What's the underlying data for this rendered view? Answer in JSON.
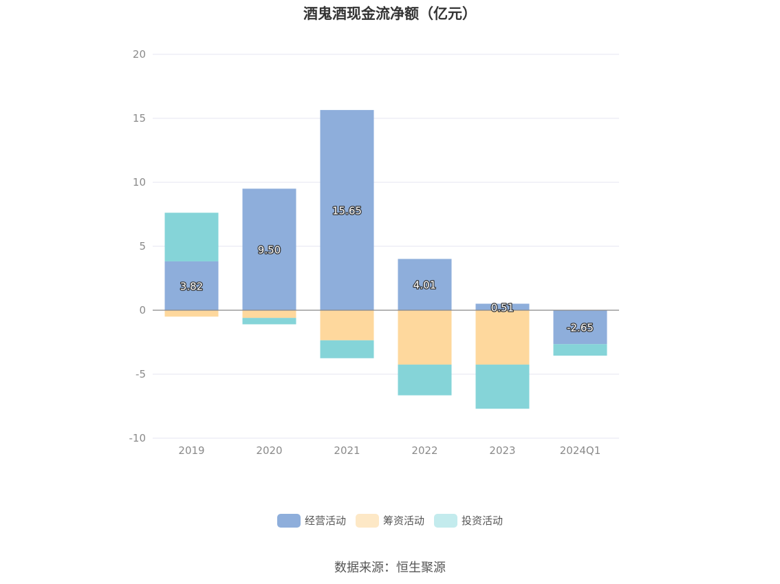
{
  "title": "酒鬼酒现金流净额（亿元）",
  "source": "数据来源：恒生聚源",
  "colors": {
    "operating": "#8eaedb",
    "financing": "#fed89d",
    "investing": "#85d4d8",
    "legend_operating": "#8eaedb",
    "legend_financing": "#fde8c6",
    "legend_investing": "#c3ebed",
    "grid": "#e4e6f0",
    "zero_line": "#888888"
  },
  "chart_data": {
    "type": "bar",
    "stacked": true,
    "title": "酒鬼酒现金流净额（亿元）",
    "categories": [
      "2019",
      "2020",
      "2021",
      "2022",
      "2023",
      "2024Q1"
    ],
    "ylim": [
      -10,
      20
    ],
    "yticks": [
      20,
      15,
      10,
      5,
      0,
      -5,
      -10
    ],
    "grid": true,
    "legend_position": "bottom",
    "series": [
      {
        "name": "经营活动",
        "values": [
          3.82,
          9.5,
          15.65,
          4.01,
          0.51,
          -2.65
        ],
        "labels": [
          "3.82",
          "9.50",
          "15.65",
          "4.01",
          "0.51",
          "-2.65"
        ]
      },
      {
        "name": "筹资活动",
        "values": [
          -0.5,
          -0.6,
          -2.35,
          -4.25,
          -4.25,
          0
        ]
      },
      {
        "name": "投资活动",
        "values": [
          3.8,
          -0.5,
          -1.4,
          -2.4,
          -3.45,
          -0.9
        ]
      }
    ]
  }
}
